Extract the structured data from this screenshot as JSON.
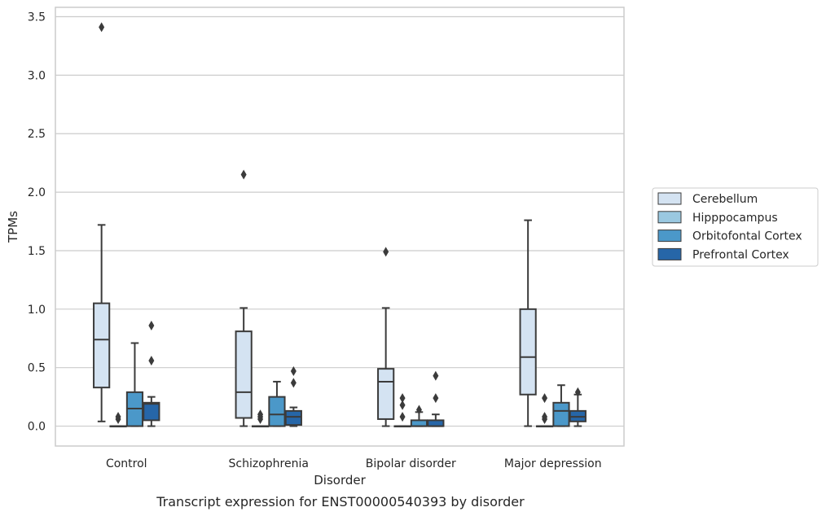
{
  "chart_data": {
    "type": "box",
    "caption": "Transcript expression for ENST00000540393 by disorder",
    "xlabel": "Disorder",
    "ylabel": "TPMs",
    "ylim": [
      -0.17,
      3.58
    ],
    "yticks": [
      0.0,
      0.5,
      1.0,
      1.5,
      2.0,
      2.5,
      3.0,
      3.5
    ],
    "ytick_labels": [
      "0.0",
      "0.5",
      "1.0",
      "1.5",
      "2.0",
      "2.5",
      "3.0",
      "3.5"
    ],
    "grid": "horizontal",
    "legend_position": "right",
    "categories": [
      "Control",
      "Schizophrenia",
      "Bipolar disorder",
      "Major depression"
    ],
    "series": [
      {
        "name": "Cerebellum",
        "color": "#d4e3f2",
        "boxes": [
          {
            "whislo": 0.04,
            "q1": 0.33,
            "med": 0.74,
            "q3": 1.05,
            "whishi": 1.72,
            "fliers": [
              3.41
            ]
          },
          {
            "whislo": 0.0,
            "q1": 0.07,
            "med": 0.29,
            "q3": 0.81,
            "whishi": 1.01,
            "fliers": [
              2.15
            ]
          },
          {
            "whislo": 0.0,
            "q1": 0.06,
            "med": 0.38,
            "q3": 0.49,
            "whishi": 1.01,
            "fliers": [
              1.49
            ]
          },
          {
            "whislo": 0.0,
            "q1": 0.27,
            "med": 0.59,
            "q3": 1.0,
            "whishi": 1.76,
            "fliers": []
          }
        ]
      },
      {
        "name": "Hipppocampus",
        "color": "#9ac8e0",
        "boxes": [
          {
            "whislo": 0.0,
            "q1": 0.0,
            "med": 0.0,
            "q3": 0.0,
            "whishi": 0.0,
            "fliers": [
              0.06,
              0.08
            ]
          },
          {
            "whislo": 0.0,
            "q1": 0.0,
            "med": 0.0,
            "q3": 0.0,
            "whishi": 0.0,
            "fliers": [
              0.06,
              0.08,
              0.1
            ]
          },
          {
            "whislo": 0.0,
            "q1": 0.0,
            "med": 0.0,
            "q3": 0.0,
            "whishi": 0.0,
            "fliers": [
              0.08,
              0.18,
              0.24
            ]
          },
          {
            "whislo": 0.0,
            "q1": 0.0,
            "med": 0.0,
            "q3": 0.0,
            "whishi": 0.0,
            "fliers": [
              0.06,
              0.08,
              0.24
            ]
          }
        ]
      },
      {
        "name": "Orbitofontal Cortex",
        "color": "#4b98c9",
        "boxes": [
          {
            "whislo": 0.0,
            "q1": 0.0,
            "med": 0.15,
            "q3": 0.29,
            "whishi": 0.71,
            "fliers": []
          },
          {
            "whislo": 0.0,
            "q1": 0.0,
            "med": 0.1,
            "q3": 0.25,
            "whishi": 0.38,
            "fliers": []
          },
          {
            "whislo": 0.0,
            "q1": 0.0,
            "med": 0.0,
            "q3": 0.05,
            "whishi": 0.12,
            "fliers": [
              0.14
            ]
          },
          {
            "whislo": 0.0,
            "q1": 0.0,
            "med": 0.13,
            "q3": 0.2,
            "whishi": 0.35,
            "fliers": []
          }
        ]
      },
      {
        "name": "Prefrontal Cortex",
        "color": "#2666a8",
        "boxes": [
          {
            "whislo": 0.0,
            "q1": 0.05,
            "med": 0.19,
            "q3": 0.2,
            "whishi": 0.25,
            "fliers": [
              0.56,
              0.86
            ]
          },
          {
            "whislo": 0.0,
            "q1": 0.01,
            "med": 0.08,
            "q3": 0.13,
            "whishi": 0.16,
            "fliers": [
              0.37,
              0.47
            ]
          },
          {
            "whislo": 0.0,
            "q1": 0.0,
            "med": 0.0,
            "q3": 0.05,
            "whishi": 0.1,
            "fliers": [
              0.24,
              0.43
            ]
          },
          {
            "whislo": 0.0,
            "q1": 0.04,
            "med": 0.08,
            "q3": 0.13,
            "whishi": 0.27,
            "fliers": [
              0.29
            ]
          }
        ]
      }
    ]
  }
}
